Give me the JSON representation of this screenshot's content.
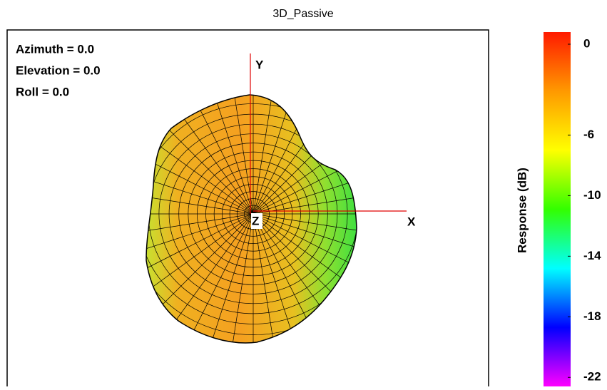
{
  "chart_data": {
    "type": "surface",
    "title": "3D_Passive",
    "annotations": [
      "Azimuth = 0.0",
      "Elevation = 0.0",
      "Roll = 0.0"
    ],
    "axis_labels": {
      "x": "X",
      "y": "Y",
      "z": "Z"
    },
    "colorbar": {
      "label": "Response (dB)",
      "lim": [
        -22.6,
        0.8
      ],
      "ticks": [
        0,
        -6,
        -10,
        -14,
        -18,
        -22
      ],
      "colors": [
        "#ff1a00",
        "#ff9900",
        "#ffff00",
        "#33ff00",
        "#00ffff",
        "#0000ff",
        "#ff00ff"
      ]
    }
  }
}
